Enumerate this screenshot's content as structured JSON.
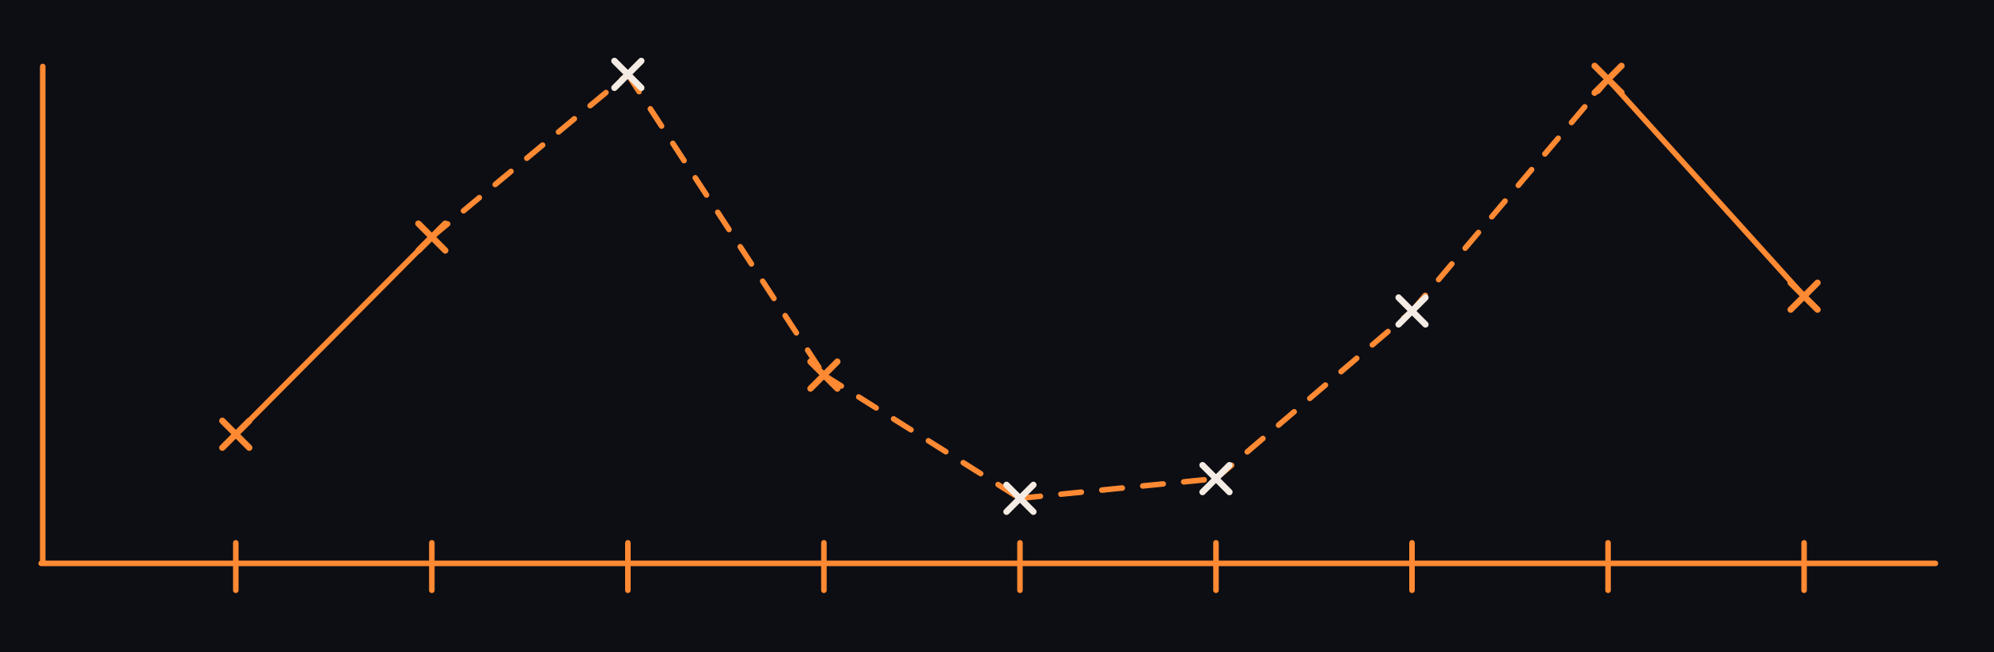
{
  "chart_data": {
    "type": "line",
    "title": "",
    "xlabel": "",
    "ylabel": "",
    "x": [
      1,
      2,
      3,
      4,
      5,
      6,
      7,
      8,
      9
    ],
    "ylim": [
      0,
      10
    ],
    "series": [
      {
        "values": [
          2.7,
          6.7,
          10.0,
          3.9,
          1.4,
          1.8,
          5.2,
          9.9,
          5.5
        ],
        "segment_styles": [
          "solid",
          "dashed",
          "dashed",
          "dashed",
          "dashed",
          "dashed",
          "dashed",
          "solid"
        ],
        "marker_colors": [
          "#ff8a33",
          "#ff8a33",
          "#f4ece4",
          "#ff8a33",
          "#f4ece4",
          "#f4ece4",
          "#f4ece4",
          "#ff8a33",
          "#ff8a33"
        ]
      }
    ],
    "line_color": "#ff8a33",
    "background": "#0d0e14",
    "grid": false,
    "legend": "none",
    "tick_labels": false
  }
}
